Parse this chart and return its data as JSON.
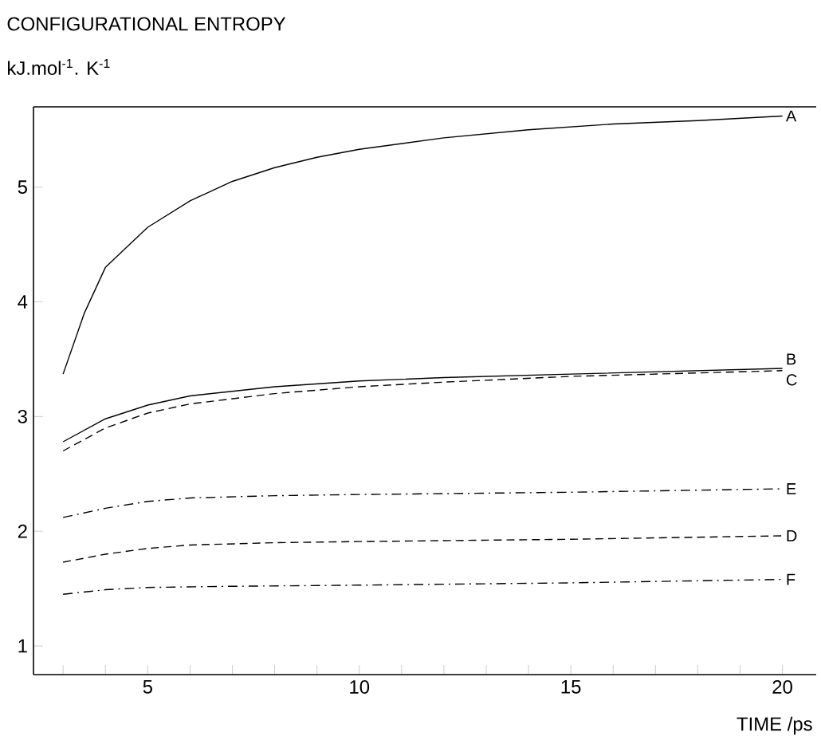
{
  "chart_data": {
    "type": "line",
    "title": "CONFIGURATIONAL ENTROPY",
    "ylabel": "kJ.mol$^{-1}$. K$^{-1}$",
    "xlabel": "TIME /ps",
    "xlim": [
      2.3,
      20.8
    ],
    "ylim": [
      0.75,
      5.7
    ],
    "xticks": [
      {
        "value": 3,
        "label": null
      },
      {
        "value": 4,
        "label": null
      },
      5,
      {
        "value": 6,
        "label": null
      },
      {
        "value": 7,
        "label": null
      },
      {
        "value": 8,
        "label": null
      },
      {
        "value": 9,
        "label": null
      },
      10,
      {
        "value": 11,
        "label": null
      },
      {
        "value": 12,
        "label": null
      },
      {
        "value": 13,
        "label": null
      },
      {
        "value": 14,
        "label": null
      },
      15,
      {
        "value": 16,
        "label": null
      },
      {
        "value": 17,
        "label": null
      },
      {
        "value": 18,
        "label": null
      },
      {
        "value": 19,
        "label": null
      },
      20
    ],
    "yticks": [
      1,
      2,
      3,
      4,
      5
    ],
    "marker": "none",
    "series": [
      {
        "name": "A",
        "color": "#000000",
        "line_style": "solid",
        "x": [
          3,
          3.5,
          4,
          5,
          6,
          7,
          8,
          9,
          10,
          12,
          14,
          16,
          18,
          20
        ],
        "values": [
          3.37,
          3.9,
          4.3,
          4.65,
          4.88,
          5.05,
          5.17,
          5.26,
          5.33,
          5.43,
          5.5,
          5.55,
          5.58,
          5.62
        ]
      },
      {
        "name": "B",
        "color": "#000000",
        "line_style": "solid",
        "x": [
          3,
          4,
          5,
          6,
          8,
          10,
          12,
          15,
          20
        ],
        "values": [
          2.78,
          2.98,
          3.1,
          3.18,
          3.26,
          3.31,
          3.34,
          3.37,
          3.42
        ]
      },
      {
        "name": "C",
        "color": "#000000",
        "line_style": "dashed",
        "x": [
          3,
          4,
          5,
          6,
          8,
          10,
          12,
          15,
          20
        ],
        "values": [
          2.7,
          2.9,
          3.03,
          3.11,
          3.2,
          3.26,
          3.3,
          3.35,
          3.4
        ]
      },
      {
        "name": "E",
        "color": "#000000",
        "line_style": "dashdot",
        "x": [
          3,
          4,
          5,
          6,
          8,
          10,
          15,
          20
        ],
        "values": [
          2.12,
          2.2,
          2.26,
          2.29,
          2.31,
          2.32,
          2.34,
          2.37
        ]
      },
      {
        "name": "D",
        "color": "#000000",
        "line_style": "dashed",
        "x": [
          3,
          4,
          5,
          6,
          8,
          10,
          15,
          20
        ],
        "values": [
          1.73,
          1.8,
          1.85,
          1.88,
          1.9,
          1.91,
          1.93,
          1.96
        ]
      },
      {
        "name": "F",
        "color": "#000000",
        "line_style": "dashdot",
        "x": [
          3,
          4,
          5,
          7,
          10,
          15,
          20
        ],
        "values": [
          1.45,
          1.49,
          1.51,
          1.52,
          1.53,
          1.55,
          1.58
        ]
      }
    ]
  }
}
